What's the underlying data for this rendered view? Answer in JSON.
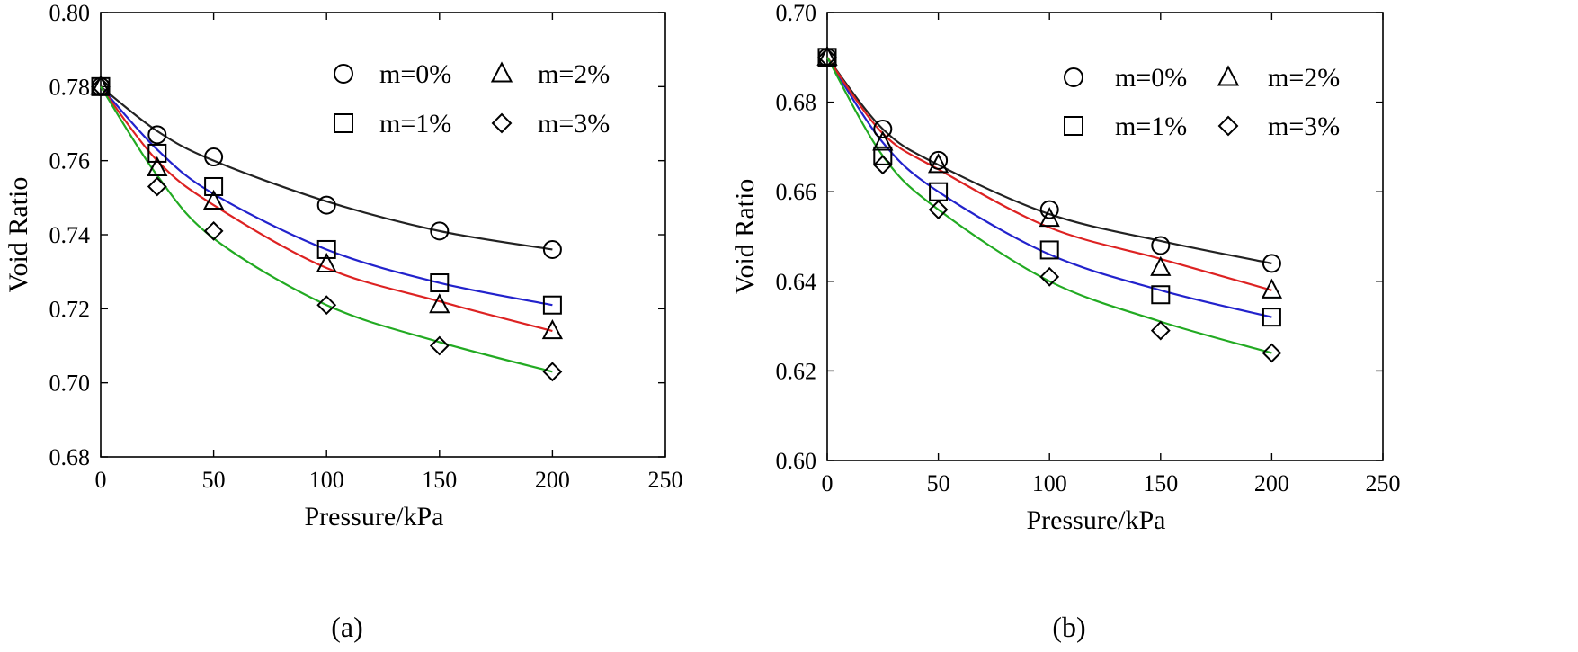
{
  "chart_data": [
    {
      "type": "scatter",
      "panel_label": "(a)",
      "xlabel": "Pressure/kPa",
      "ylabel": "Void Ratio",
      "xlim": [
        0,
        250
      ],
      "ylim": [
        0.68,
        0.8
      ],
      "xticks": [
        "0",
        "50",
        "100",
        "150",
        "200",
        "250"
      ],
      "yticks": [
        "0.68",
        "0.70",
        "0.72",
        "0.74",
        "0.76",
        "0.78",
        "0.80"
      ],
      "legend_position": "top-right",
      "series": [
        {
          "name": "m=0%",
          "marker": "circle",
          "line_color": "#222222",
          "x": [
            0,
            25,
            50,
            100,
            150,
            200
          ],
          "y": [
            0.78,
            0.767,
            0.761,
            0.748,
            0.741,
            0.736
          ]
        },
        {
          "name": "m=1%",
          "marker": "square",
          "line_color": "#2222cc",
          "x": [
            0,
            25,
            50,
            100,
            150,
            200
          ],
          "y": [
            0.78,
            0.762,
            0.753,
            0.736,
            0.727,
            0.721
          ]
        },
        {
          "name": "m=2%",
          "marker": "triangle",
          "line_color": "#dd2222",
          "x": [
            0,
            25,
            50,
            100,
            150,
            200
          ],
          "y": [
            0.78,
            0.758,
            0.749,
            0.732,
            0.721,
            0.714
          ]
        },
        {
          "name": "m=3%",
          "marker": "diamond",
          "line_color": "#22aa22",
          "x": [
            0,
            25,
            50,
            100,
            150,
            200
          ],
          "y": [
            0.78,
            0.753,
            0.741,
            0.721,
            0.71,
            0.703
          ]
        }
      ],
      "fits": [
        {
          "x": [
            0,
            25,
            50,
            100,
            150,
            200
          ],
          "y": [
            0.78,
            0.768,
            0.76,
            0.749,
            0.741,
            0.736
          ]
        },
        {
          "x": [
            0,
            25,
            50,
            100,
            150,
            200
          ],
          "y": [
            0.78,
            0.763,
            0.751,
            0.736,
            0.727,
            0.721
          ]
        },
        {
          "x": [
            0,
            25,
            50,
            100,
            150,
            200
          ],
          "y": [
            0.78,
            0.76,
            0.748,
            0.731,
            0.722,
            0.714
          ]
        },
        {
          "x": [
            0,
            25,
            50,
            100,
            150,
            200
          ],
          "y": [
            0.78,
            0.756,
            0.739,
            0.721,
            0.711,
            0.703
          ]
        }
      ]
    },
    {
      "type": "scatter",
      "panel_label": "(b)",
      "xlabel": "Pressure/kPa",
      "ylabel": "Void Ratio",
      "xlim": [
        0,
        250
      ],
      "ylim": [
        0.6,
        0.7
      ],
      "xticks": [
        "0",
        "50",
        "100",
        "150",
        "200",
        "250"
      ],
      "yticks": [
        "0.60",
        "0.62",
        "0.64",
        "0.66",
        "0.68",
        "0.70"
      ],
      "legend_position": "top-right",
      "series": [
        {
          "name": "m=0%",
          "marker": "circle",
          "line_color": "#222222",
          "x": [
            0,
            25,
            50,
            100,
            150,
            200
          ],
          "y": [
            0.69,
            0.674,
            0.667,
            0.656,
            0.648,
            0.644
          ]
        },
        {
          "name": "m=1%",
          "marker": "square",
          "line_color": "#2222cc",
          "x": [
            0,
            25,
            50,
            100,
            150,
            200
          ],
          "y": [
            0.69,
            0.668,
            0.66,
            0.647,
            0.637,
            0.632
          ]
        },
        {
          "name": "m=2%",
          "marker": "triangle",
          "line_color": "#dd2222",
          "x": [
            0,
            25,
            50,
            100,
            150,
            200
          ],
          "y": [
            0.69,
            0.671,
            0.666,
            0.654,
            0.643,
            0.638
          ]
        },
        {
          "name": "m=3%",
          "marker": "diamond",
          "line_color": "#22aa22",
          "x": [
            0,
            25,
            50,
            100,
            150,
            200
          ],
          "y": [
            0.69,
            0.666,
            0.656,
            0.641,
            0.629,
            0.624
          ]
        }
      ],
      "fits": [
        {
          "x": [
            0,
            25,
            50,
            100,
            150,
            200
          ],
          "y": [
            0.69,
            0.674,
            0.666,
            0.655,
            0.649,
            0.644
          ]
        },
        {
          "x": [
            0,
            25,
            50,
            100,
            150,
            200
          ],
          "y": [
            0.69,
            0.671,
            0.66,
            0.646,
            0.638,
            0.632
          ]
        },
        {
          "x": [
            0,
            25,
            50,
            100,
            150,
            200
          ],
          "y": [
            0.69,
            0.673,
            0.665,
            0.652,
            0.645,
            0.638
          ]
        },
        {
          "x": [
            0,
            25,
            50,
            100,
            150,
            200
          ],
          "y": [
            0.69,
            0.668,
            0.656,
            0.64,
            0.631,
            0.624
          ]
        }
      ]
    }
  ]
}
